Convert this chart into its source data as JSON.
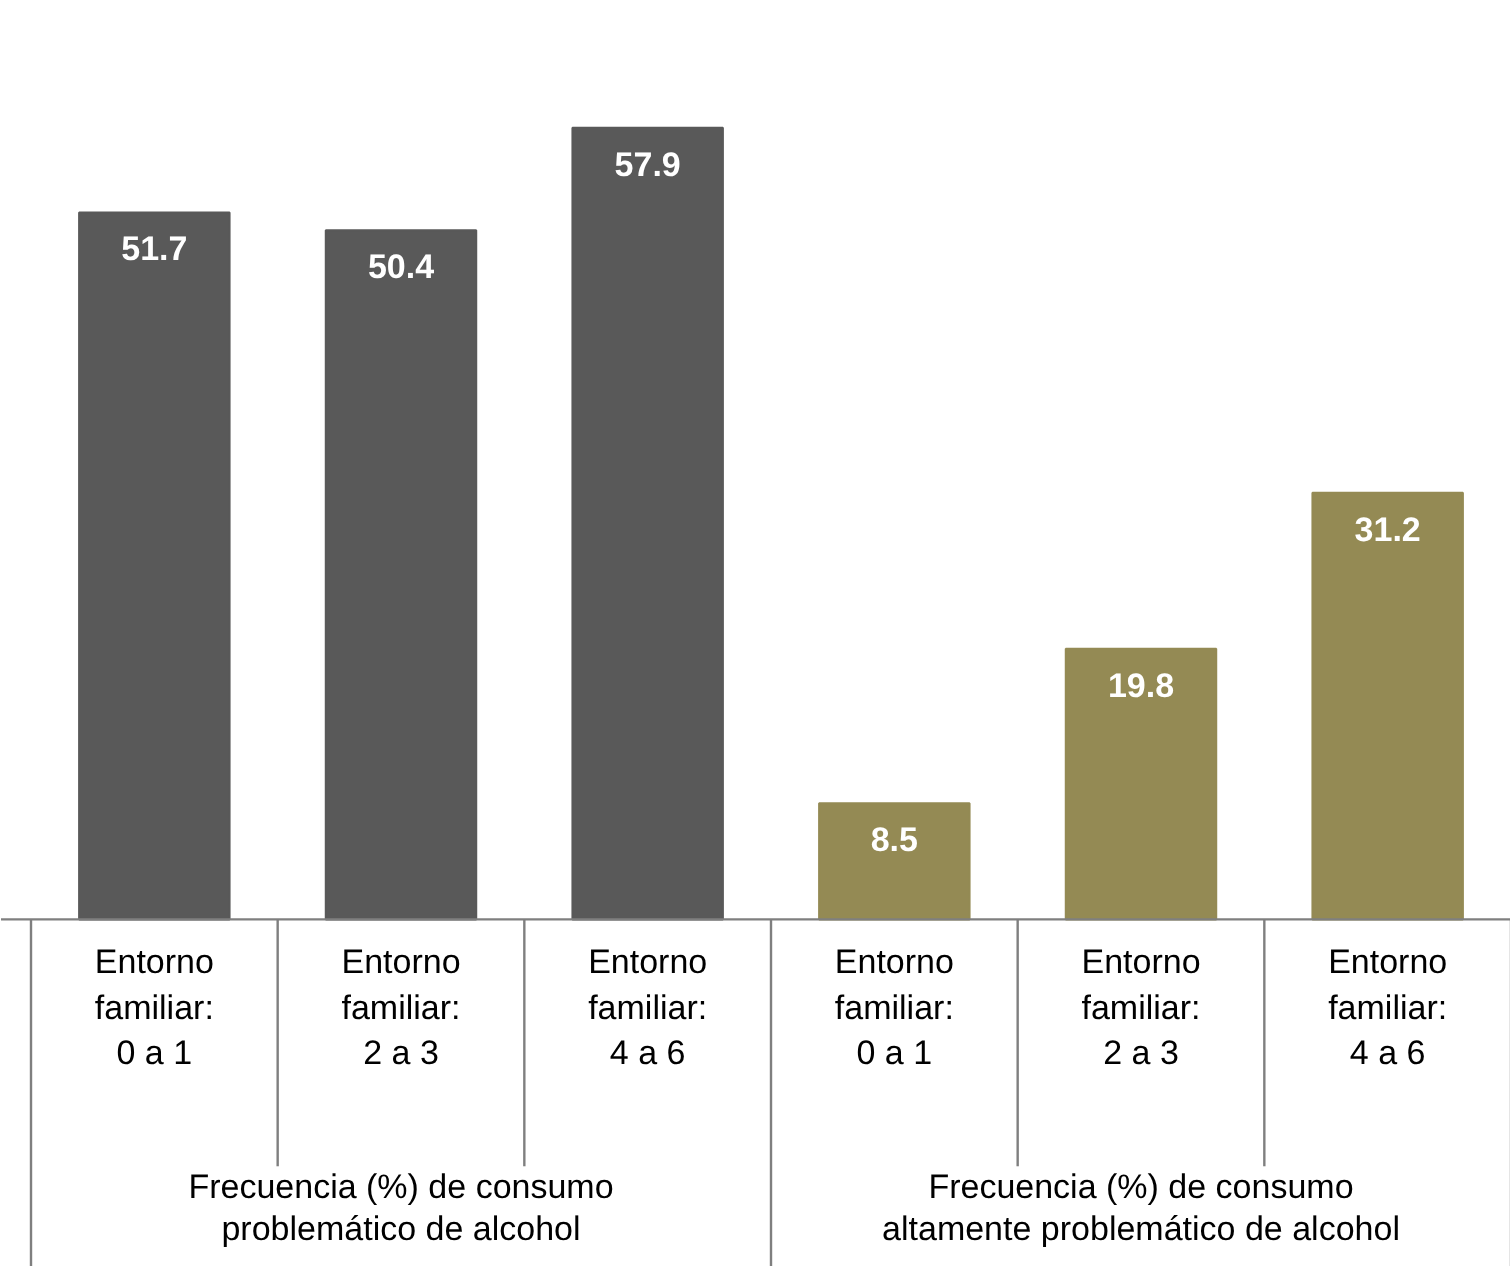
{
  "chart_data": {
    "type": "bar",
    "categories": [
      "Entorno familiar: 0 a 1",
      "Entorno familiar: 2 a 3",
      "Entorno familiar: 4 a 6",
      "Entorno familiar: 0 a 1",
      "Entorno familiar: 2 a 3",
      "Entorno familiar: 4 a 6"
    ],
    "series": [
      {
        "color": "#595959",
        "values": [
          51.7,
          50.4,
          57.9,
          null,
          null,
          null
        ]
      },
      {
        "color": "#948a54",
        "values": [
          null,
          null,
          null,
          8.5,
          19.8,
          31.2
        ]
      }
    ],
    "annotations": [
      "Frecuencia (%) de consumo problemático de alcohol",
      "Frecuencia (%) de consumo altamente problemático de alcohol"
    ],
    "data_labels": true,
    "grid": false
  }
}
